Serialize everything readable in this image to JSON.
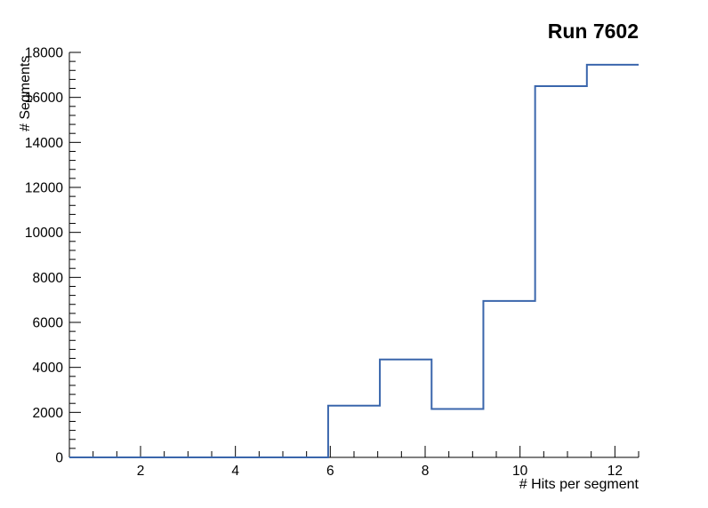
{
  "chart_data": {
    "type": "line",
    "subtype": "histogram-step",
    "title": "Run 7602",
    "xlabel": "# Hits per segment",
    "ylabel": "# Segments",
    "xlim": [
      0.5,
      12.5
    ],
    "ylim": [
      0,
      18000
    ],
    "bin_edges": [
      0.5,
      1.591,
      2.682,
      3.773,
      4.864,
      5.955,
      7.045,
      8.136,
      9.227,
      10.318,
      11.409,
      12.5
    ],
    "values": [
      0,
      0,
      0,
      0,
      0,
      2300,
      4350,
      2150,
      6950,
      16500,
      17450
    ],
    "x_major_ticks": [
      2,
      4,
      6,
      8,
      10,
      12
    ],
    "x_minor_step": 0.5,
    "y_major_step": 2000,
    "y_minor_step": 400,
    "y_tick_labels": [
      "0",
      "2000",
      "4000",
      "6000",
      "8000",
      "10000",
      "12000",
      "14000",
      "16000",
      "18000"
    ],
    "grid": "off",
    "legend": "none",
    "line_color": "#3a66ac",
    "axis_color": "#000000",
    "background": "#ffffff"
  }
}
